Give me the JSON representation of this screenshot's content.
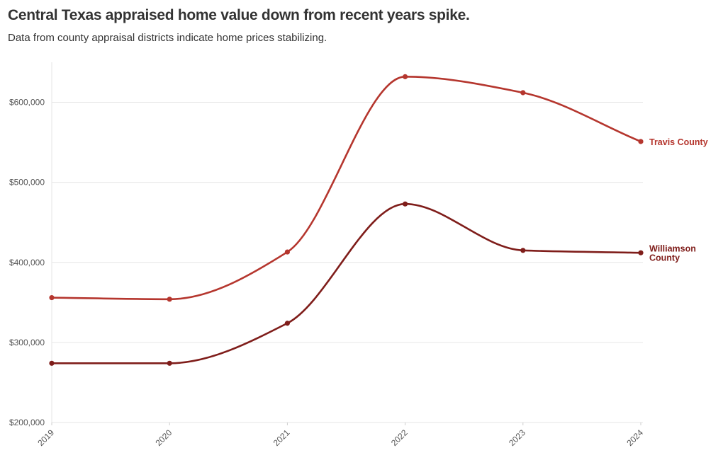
{
  "header": {
    "title": "Central Texas appraised home value down from recent years spike.",
    "subtitle": "Data from county appraisal districts indicate home prices stabilizing."
  },
  "chart_data": {
    "type": "line",
    "title": "Central Texas appraised home value down from recent years spike.",
    "subtitle": "Data from county appraisal districts indicate home prices stabilizing.",
    "xlabel": "",
    "ylabel": "",
    "categories": [
      "2019",
      "2020",
      "2021",
      "2022",
      "2023",
      "2024"
    ],
    "ylim": [
      200000,
      650000
    ],
    "yticks": [
      200000,
      300000,
      400000,
      500000,
      600000
    ],
    "ytick_labels": [
      "$200,000",
      "$300,000",
      "$400,000",
      "$500,000",
      "$600,000"
    ],
    "grid": true,
    "legend": "direct labels at line ends",
    "series": [
      {
        "name": "Travis County",
        "label_lines": [
          "Travis County"
        ],
        "color": "#b5362e",
        "values": [
          356000,
          354000,
          413000,
          632000,
          612000,
          551000
        ]
      },
      {
        "name": "Williamson County",
        "label_lines": [
          "Williamson",
          "County"
        ],
        "color": "#7f1d1a",
        "values": [
          274000,
          274000,
          324000,
          473000,
          415000,
          412000
        ]
      }
    ]
  }
}
